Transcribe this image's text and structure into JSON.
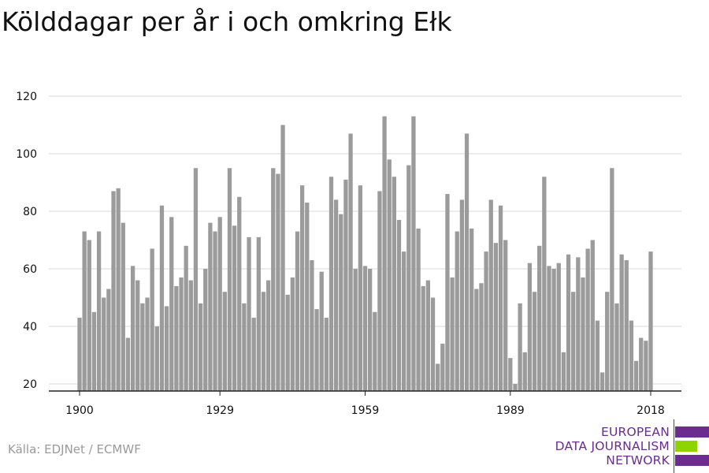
{
  "title": "Kölddagar per år i och omkring Ełk",
  "source": "Källa: EDJNet / ECMWF",
  "logo": {
    "lines": [
      "EUROPEAN",
      "DATA JOURNALISM",
      "NETWORK"
    ],
    "colors": {
      "purple": "#6b2b8f",
      "green": "#8fd400"
    }
  },
  "colors": {
    "bar": "#9b9b9b",
    "grid": "#d9d9d9",
    "axis": "#222222",
    "text": "#111111"
  },
  "chart_data": {
    "type": "bar",
    "title": "Kölddagar per år i och omkring Ełk",
    "xlabel": "",
    "ylabel": "",
    "ylim": [
      20,
      120
    ],
    "y_ticks": [
      20,
      40,
      60,
      80,
      100,
      120
    ],
    "x_ticks": [
      1900,
      1929,
      1959,
      1989,
      2018
    ],
    "grid": true,
    "x": [
      1900,
      1901,
      1902,
      1903,
      1904,
      1905,
      1906,
      1907,
      1908,
      1909,
      1910,
      1911,
      1912,
      1913,
      1914,
      1915,
      1916,
      1917,
      1918,
      1919,
      1920,
      1921,
      1922,
      1923,
      1924,
      1925,
      1926,
      1927,
      1928,
      1929,
      1930,
      1931,
      1932,
      1933,
      1934,
      1935,
      1936,
      1937,
      1938,
      1939,
      1940,
      1941,
      1942,
      1943,
      1944,
      1945,
      1946,
      1947,
      1948,
      1949,
      1950,
      1951,
      1952,
      1953,
      1954,
      1955,
      1956,
      1957,
      1958,
      1959,
      1960,
      1961,
      1962,
      1963,
      1964,
      1965,
      1966,
      1967,
      1968,
      1969,
      1970,
      1971,
      1972,
      1973,
      1974,
      1975,
      1976,
      1977,
      1978,
      1979,
      1980,
      1981,
      1982,
      1983,
      1984,
      1985,
      1986,
      1987,
      1988,
      1989,
      1990,
      1991,
      1992,
      1993,
      1994,
      1995,
      1996,
      1997,
      1998,
      1999,
      2000,
      2001,
      2002,
      2003,
      2004,
      2005,
      2006,
      2007,
      2008,
      2009,
      2010,
      2011,
      2012,
      2013,
      2014,
      2015,
      2016,
      2017,
      2018
    ],
    "values": [
      43,
      73,
      70,
      45,
      73,
      50,
      53,
      87,
      88,
      76,
      36,
      61,
      56,
      48,
      50,
      67,
      40,
      82,
      47,
      78,
      54,
      57,
      68,
      56,
      95,
      48,
      60,
      76,
      73,
      78,
      52,
      95,
      75,
      85,
      48,
      71,
      43,
      71,
      52,
      56,
      95,
      93,
      110,
      51,
      57,
      73,
      89,
      83,
      63,
      46,
      59,
      43,
      92,
      84,
      79,
      91,
      107,
      60,
      89,
      61,
      60,
      45,
      87,
      113,
      98,
      92,
      77,
      66,
      96,
      113,
      74,
      54,
      56,
      50,
      27,
      34,
      86,
      57,
      73,
      84,
      107,
      74,
      53,
      55,
      66,
      84,
      69,
      82,
      70,
      29,
      20,
      48,
      31,
      62,
      52,
      68,
      92,
      61,
      60,
      62,
      31,
      65,
      52,
      64,
      57,
      67,
      70,
      42,
      24,
      52,
      95,
      48,
      65,
      63,
      42,
      28,
      36,
      35,
      66
    ]
  }
}
